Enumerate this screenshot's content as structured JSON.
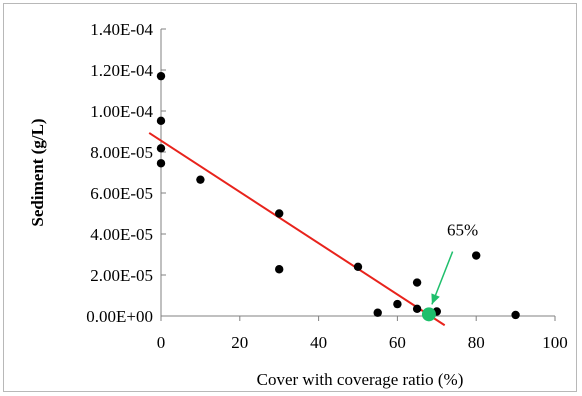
{
  "chart_data": {
    "type": "scatter",
    "title": "",
    "xlabel": "Cover with coverage ratio (%)",
    "ylabel": "Sediment (g/L)",
    "xlim": [
      0,
      100
    ],
    "ylim": [
      0,
      0.00014
    ],
    "x_ticks": [
      0,
      20,
      40,
      60,
      80,
      100
    ],
    "x_tick_labels": [
      "0",
      "20",
      "40",
      "60",
      "80",
      "100"
    ],
    "y_ticks": [
      0,
      2e-05,
      4e-05,
      6e-05,
      8e-05,
      0.0001,
      0.00012,
      0.00014
    ],
    "y_tick_labels": [
      "0.00E+00",
      "2.00E-05",
      "4.00E-05",
      "6.00E-05",
      "8.00E-05",
      "1.00E-04",
      "1.20E-04",
      "1.40E-04"
    ],
    "grid": false,
    "series": [
      {
        "x": [
          0,
          0,
          0,
          0,
          10,
          30,
          30,
          50,
          55,
          60,
          65,
          65,
          70,
          80,
          90
        ],
        "y": [
          0.000117,
          9.52e-05,
          8.18e-05,
          7.45e-05,
          6.65e-05,
          5e-05,
          2.28e-05,
          2.4e-05,
          1.6e-06,
          5.8e-06,
          1.63e-05,
          3.5e-06,
          2.2e-06,
          2.95e-05,
          5e-07
        ],
        "color": "#000000"
      }
    ],
    "trendline": {
      "x": [
        -3,
        72
      ],
      "y": [
        8.93e-05,
        -4.5e-06
      ],
      "color": "#e8231c"
    },
    "highlight_point": {
      "x": 68,
      "y": 8e-07,
      "color": "#1fbf6c"
    },
    "annotation": {
      "text": "65%",
      "x": 73,
      "y": 2.85e-05,
      "color": "#1fbf6c"
    }
  }
}
